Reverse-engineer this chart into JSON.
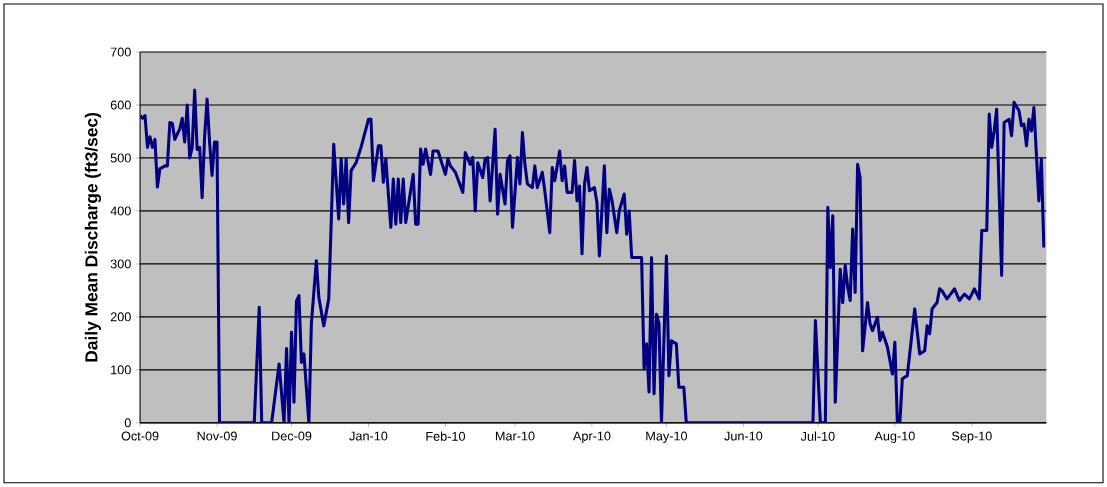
{
  "chart_data": {
    "type": "line",
    "ylabel": "Daily Mean Discharge (ft3/sec)",
    "color": "#000080",
    "grid": "y",
    "xlim": [
      "2009-10-01",
      "2010-10-01"
    ],
    "xticks": [
      {
        "value": "2009-10-01",
        "label": "Oct-09"
      },
      {
        "value": "2009-11-01",
        "label": "Nov-09"
      },
      {
        "value": "2009-12-01",
        "label": "Dec-09"
      },
      {
        "value": "2010-01-01",
        "label": "Jan-10"
      },
      {
        "value": "2010-02-01",
        "label": "Feb-10"
      },
      {
        "value": "2010-03-01",
        "label": "Mar-10"
      },
      {
        "value": "2010-04-01",
        "label": "Apr-10"
      },
      {
        "value": "2010-05-01",
        "label": "May-10"
      },
      {
        "value": "2010-06-01",
        "label": "Jun-10"
      },
      {
        "value": "2010-07-01",
        "label": "Jul-10"
      },
      {
        "value": "2010-08-01",
        "label": "Aug-10"
      },
      {
        "value": "2010-09-01",
        "label": "Sep-10"
      }
    ],
    "ylim": [
      0,
      700
    ],
    "yticks": [
      0,
      100,
      200,
      300,
      400,
      500,
      600,
      700
    ],
    "x": [
      "2009-10-01",
      "2009-10-02",
      "2009-10-03",
      "2009-10-04",
      "2009-10-05",
      "2009-10-06",
      "2009-10-07",
      "2009-10-08",
      "2009-10-09",
      "2009-10-10",
      "2009-10-11",
      "2009-10-12",
      "2009-10-13",
      "2009-10-14",
      "2009-10-15",
      "2009-10-16",
      "2009-10-17",
      "2009-10-18",
      "2009-10-19",
      "2009-10-20",
      "2009-10-21",
      "2009-10-22",
      "2009-10-23",
      "2009-10-24",
      "2009-10-25",
      "2009-10-26",
      "2009-10-27",
      "2009-10-28",
      "2009-10-29",
      "2009-10-30",
      "2009-10-31",
      "2009-11-01",
      "2009-11-02",
      "2009-11-16",
      "2009-11-18",
      "2009-11-19",
      "2009-11-23",
      "2009-11-26",
      "2009-11-28",
      "2009-11-29",
      "2009-11-30",
      "2009-12-01",
      "2009-12-02",
      "2009-12-03",
      "2009-12-04",
      "2009-12-05",
      "2009-12-06",
      "2009-12-08",
      "2009-12-09",
      "2009-12-11",
      "2009-12-12",
      "2009-12-14",
      "2009-12-16",
      "2009-12-18",
      "2009-12-20",
      "2009-12-21",
      "2009-12-22",
      "2009-12-23",
      "2009-12-24",
      "2009-12-25",
      "2009-12-27",
      "2009-12-29",
      "2010-01-01",
      "2010-01-02",
      "2010-01-03",
      "2010-01-05",
      "2010-01-06",
      "2010-01-07",
      "2010-01-08",
      "2010-01-10",
      "2010-01-11",
      "2010-01-12",
      "2010-01-13",
      "2010-01-14",
      "2010-01-15",
      "2010-01-16",
      "2010-01-19",
      "2010-01-20",
      "2010-01-21",
      "2010-01-22",
      "2010-01-23",
      "2010-01-24",
      "2010-01-26",
      "2010-01-27",
      "2010-01-29",
      "2010-01-30",
      "2010-02-01",
      "2010-02-02",
      "2010-02-03",
      "2010-02-05",
      "2010-02-08",
      "2010-02-09",
      "2010-02-11",
      "2010-02-12",
      "2010-02-13",
      "2010-02-14",
      "2010-02-16",
      "2010-02-17",
      "2010-02-18",
      "2010-02-19",
      "2010-02-21",
      "2010-02-22",
      "2010-02-23",
      "2010-02-25",
      "2010-02-26",
      "2010-02-27",
      "2010-02-28",
      "2010-03-02",
      "2010-03-03",
      "2010-03-04",
      "2010-03-05",
      "2010-03-06",
      "2010-03-08",
      "2010-03-09",
      "2010-03-10",
      "2010-03-12",
      "2010-03-13",
      "2010-03-15",
      "2010-03-16",
      "2010-03-17",
      "2010-03-19",
      "2010-03-20",
      "2010-03-21",
      "2010-03-22",
      "2010-03-24",
      "2010-03-25",
      "2010-03-26",
      "2010-03-27",
      "2010-03-28",
      "2010-03-29",
      "2010-03-30",
      "2010-03-31",
      "2010-04-02",
      "2010-04-03",
      "2010-04-04",
      "2010-04-06",
      "2010-04-07",
      "2010-04-08",
      "2010-04-09",
      "2010-04-11",
      "2010-04-12",
      "2010-04-14",
      "2010-04-15",
      "2010-04-16",
      "2010-04-17",
      "2010-04-21",
      "2010-04-22",
      "2010-04-23",
      "2010-04-24",
      "2010-04-25",
      "2010-04-26",
      "2010-04-27",
      "2010-04-28",
      "2010-04-29",
      "2010-05-01",
      "2010-05-02",
      "2010-05-03",
      "2010-05-05",
      "2010-05-06",
      "2010-05-08",
      "2010-05-09",
      "2010-06-29",
      "2010-06-30",
      "2010-07-02",
      "2010-07-04",
      "2010-07-05",
      "2010-07-06",
      "2010-07-07",
      "2010-07-08",
      "2010-07-10",
      "2010-07-11",
      "2010-07-12",
      "2010-07-13",
      "2010-07-14",
      "2010-07-15",
      "2010-07-16",
      "2010-07-17",
      "2010-07-18",
      "2010-07-19",
      "2010-07-21",
      "2010-07-22",
      "2010-07-23",
      "2010-07-25",
      "2010-07-26",
      "2010-07-27",
      "2010-07-29",
      "2010-07-31",
      "2010-08-01",
      "2010-08-02",
      "2010-08-03",
      "2010-08-04",
      "2010-08-06",
      "2010-08-09",
      "2010-08-11",
      "2010-08-13",
      "2010-08-14",
      "2010-08-15",
      "2010-08-16",
      "2010-08-18",
      "2010-08-19",
      "2010-08-20",
      "2010-08-22",
      "2010-08-23",
      "2010-08-25",
      "2010-08-27",
      "2010-08-29",
      "2010-08-31",
      "2010-09-01",
      "2010-09-02",
      "2010-09-04",
      "2010-09-05",
      "2010-09-07",
      "2010-09-08",
      "2010-09-09",
      "2010-09-10",
      "2010-09-11",
      "2010-09-13",
      "2010-09-14",
      "2010-09-16",
      "2010-09-17",
      "2010-09-18",
      "2010-09-20",
      "2010-09-21",
      "2010-09-22",
      "2010-09-23",
      "2010-09-24",
      "2010-09-25",
      "2010-09-26",
      "2010-09-28",
      "2010-09-29",
      "2010-09-30"
    ],
    "values": [
      580,
      575,
      580,
      520,
      540,
      520,
      535,
      445,
      480,
      482,
      485,
      485,
      567,
      565,
      535,
      545,
      555,
      575,
      530,
      600,
      500,
      520,
      628,
      516,
      520,
      425,
      540,
      611,
      530,
      467,
      530,
      530,
      0,
      0,
      218,
      0,
      0,
      111,
      0,
      140,
      0,
      171,
      39,
      230,
      240,
      114,
      130,
      0,
      187,
      306,
      237,
      183,
      234,
      526,
      385,
      498,
      413,
      498,
      378,
      476,
      491,
      520,
      573,
      573,
      457,
      523,
      523,
      454,
      498,
      369,
      460,
      375,
      460,
      378,
      460,
      378,
      469,
      375,
      375,
      517,
      488,
      517,
      469,
      513,
      513,
      498,
      469,
      498,
      485,
      473,
      435,
      510,
      488,
      501,
      400,
      491,
      463,
      498,
      501,
      419,
      554,
      394,
      469,
      413,
      495,
      504,
      369,
      501,
      451,
      548,
      488,
      451,
      444,
      485,
      444,
      473,
      438,
      359,
      482,
      457,
      513,
      457,
      485,
      435,
      435,
      495,
      419,
      447,
      319,
      451,
      482,
      438,
      444,
      416,
      315,
      485,
      359,
      441,
      422,
      359,
      400,
      432,
      356,
      400,
      312,
      312,
      102,
      149,
      58,
      312,
      55,
      205,
      187,
      0,
      315,
      89,
      155,
      149,
      67,
      67,
      0,
      0,
      193,
      0,
      0,
      407,
      293,
      391,
      39,
      290,
      227,
      297,
      256,
      231,
      366,
      246,
      488,
      463,
      136,
      227,
      187,
      174,
      199,
      155,
      171,
      143,
      92,
      152,
      0,
      0,
      83,
      89,
      215,
      130,
      136,
      183,
      168,
      215,
      227,
      253,
      249,
      234,
      240,
      253,
      231,
      243,
      234,
      243,
      253,
      234,
      363,
      363,
      583,
      520,
      551,
      592,
      278,
      567,
      573,
      542,
      605,
      589,
      561,
      564,
      523,
      573,
      551,
      595,
      419,
      498,
      331
    ]
  }
}
